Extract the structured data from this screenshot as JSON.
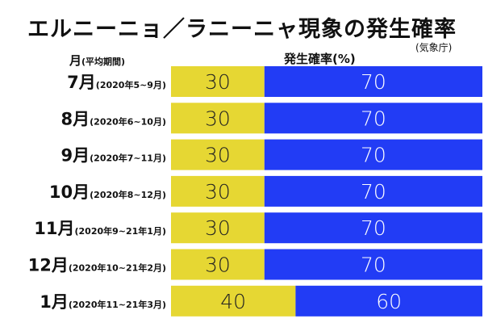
{
  "chart_data": {
    "type": "bar",
    "orientation": "horizontal",
    "stacked": true,
    "title": "エルニーニョ／ラニーニャ現象の発生確率",
    "source": "(気象庁)",
    "ylabel_main": "月",
    "ylabel_sub": "(平均期間)",
    "xlabel": "発生確率(%)",
    "xlim": [
      0,
      100
    ],
    "categories": [
      {
        "month": "7月",
        "period": "(2020年5~9月)"
      },
      {
        "month": "8月",
        "period": "(2020年6~10月)"
      },
      {
        "month": "9月",
        "period": "(2020年7~11月)"
      },
      {
        "month": "10月",
        "period": "(2020年8~12月)"
      },
      {
        "month": "11月",
        "period": "(2020年9~21年1月)"
      },
      {
        "month": "12月",
        "period": "(2020年10~21年2月)"
      },
      {
        "month": "1月",
        "period": "(2020年11~21年3月)"
      }
    ],
    "series": [
      {
        "values": [
          30,
          30,
          30,
          30,
          30,
          30,
          40
        ],
        "color": "#e6d733",
        "label_color": "#222222"
      },
      {
        "values": [
          70,
          70,
          70,
          70,
          70,
          70,
          60
        ],
        "color": "#223cf5",
        "label_color": "#ffffff"
      }
    ],
    "grid": false,
    "legend": "none"
  }
}
